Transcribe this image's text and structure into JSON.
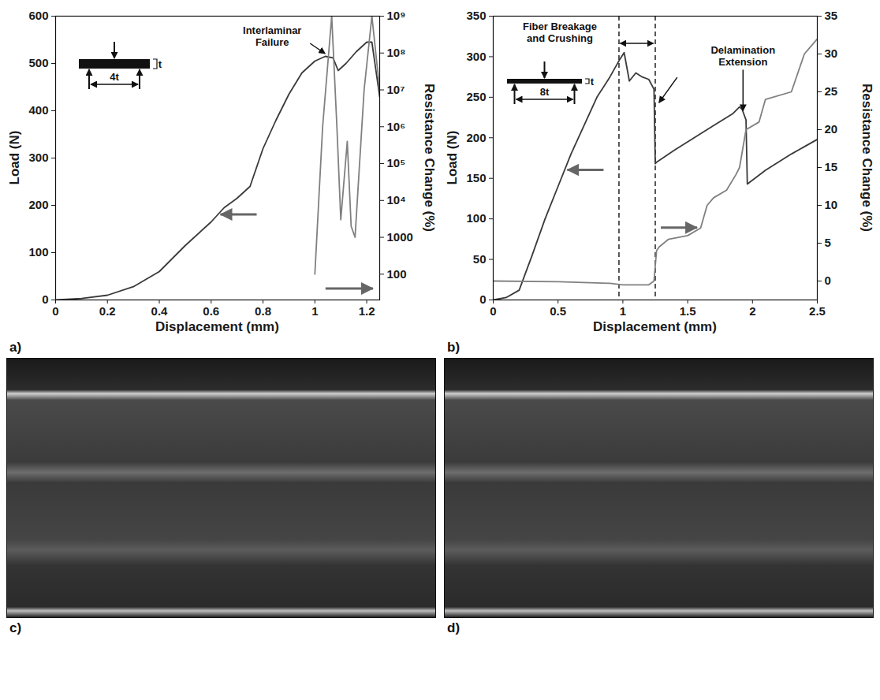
{
  "chart_data": [
    {
      "type": "line",
      "panel": "a)",
      "xlabel": "Displacement (mm)",
      "ylabel": "Load (N)",
      "y2label": "Resistance Change (%)",
      "xlim": [
        0,
        1.25
      ],
      "xticks": [
        0,
        0.2,
        0.4,
        0.6,
        0.8,
        1,
        1.2
      ],
      "ylim": [
        0,
        600
      ],
      "yticks": [
        0,
        100,
        200,
        300,
        400,
        500,
        600
      ],
      "y2lim": [
        20,
        1000000000
      ],
      "y2ticks": [
        100,
        1000,
        {
          "value": 10000,
          "label": "10⁴"
        },
        {
          "value": 100000,
          "label": "10⁵"
        },
        {
          "value": 1000000,
          "label": "10⁶"
        },
        {
          "value": 10000000,
          "label": "10⁷"
        },
        {
          "value": 100000000,
          "label": "10⁸"
        },
        {
          "value": 1000000000,
          "label": "10⁹"
        }
      ],
      "series": [
        {
          "color": "#3a3a3a",
          "x": [
            0,
            0.1,
            0.2,
            0.3,
            0.4,
            0.5,
            0.6,
            0.65,
            0.7,
            0.75,
            0.8,
            0.85,
            0.9,
            0.95,
            1.0,
            1.04,
            1.07,
            1.09,
            1.12,
            1.16,
            1.2,
            1.22,
            1.25
          ],
          "values": [
            0,
            3,
            10,
            28,
            60,
            115,
            165,
            195,
            215,
            240,
            320,
            380,
            435,
            480,
            505,
            515,
            512,
            485,
            500,
            525,
            545,
            545,
            430
          ]
        },
        {
          "axis": "y2",
          "log": true,
          "color": "#808080",
          "x": [
            1.0,
            1.03,
            1.065,
            1.085,
            1.1,
            1.125,
            1.14,
            1.155,
            1.19,
            1.22,
            1.25
          ],
          "values": [
            100,
            1000000,
            1000000000,
            1000000,
            3000,
            400000,
            2000,
            1000,
            10000000,
            1000000000,
            10000000
          ]
        }
      ],
      "annotations": [
        {
          "text": "Interlaminar Failure",
          "x": 1.05,
          "y": 515
        }
      ],
      "inset": {
        "thickness_label": "t",
        "span_label": "4t"
      }
    },
    {
      "type": "line",
      "panel": "b)",
      "xlabel": "Displacement (mm)",
      "ylabel": "Load (N)",
      "y2label": "Resistance Change (%)",
      "xlim": [
        0,
        2.5
      ],
      "xticks": [
        0,
        0.5,
        1,
        1.5,
        2,
        2.5
      ],
      "ylim": [
        0,
        350
      ],
      "yticks": [
        0,
        50,
        100,
        150,
        200,
        250,
        300,
        350
      ],
      "y2lim": [
        -2.5,
        35
      ],
      "y2ticks": [
        0,
        5,
        10,
        15,
        20,
        25,
        30,
        35
      ],
      "vlines": [
        0.97,
        1.25
      ],
      "series": [
        {
          "color": "#3a3a3a",
          "x": [
            0,
            0.1,
            0.2,
            0.3,
            0.4,
            0.5,
            0.6,
            0.7,
            0.8,
            0.9,
            0.97,
            1.01,
            1.05,
            1.1,
            1.15,
            1.2,
            1.24,
            1.25,
            1.26,
            1.4,
            1.55,
            1.7,
            1.85,
            1.9,
            1.92,
            1.95,
            1.96,
            2.1,
            2.3,
            2.5
          ],
          "values": [
            0,
            3,
            12,
            55,
            100,
            140,
            180,
            215,
            250,
            275,
            295,
            305,
            270,
            280,
            275,
            272,
            260,
            168,
            170,
            185,
            200,
            215,
            230,
            238,
            235,
            222,
            143,
            160,
            180,
            198
          ]
        },
        {
          "axis": "y2",
          "color": "#808080",
          "x": [
            0,
            0.5,
            0.9,
            1.0,
            1.2,
            1.24,
            1.26,
            1.28,
            1.35,
            1.5,
            1.6,
            1.65,
            1.7,
            1.8,
            1.87,
            1.9,
            1.95,
            2.05,
            2.1,
            2.3,
            2.4,
            2.45,
            2.5
          ],
          "values": [
            0,
            -0.1,
            -0.3,
            -0.5,
            -0.5,
            0,
            4,
            4.5,
            5.5,
            6,
            7,
            10,
            11,
            12,
            14,
            15,
            20,
            21,
            24,
            25,
            30,
            31,
            32
          ]
        }
      ],
      "annotations": [
        {
          "text": "Fiber Breakage and Crushing",
          "x": 1.27,
          "y": 240
        },
        {
          "text": "Delamination Extension",
          "x": 1.93,
          "y": 230
        }
      ],
      "inset": {
        "thickness_label": "t",
        "span_label": "8t"
      }
    }
  ],
  "images": [
    {
      "panel": "c)"
    },
    {
      "panel": "d)"
    }
  ]
}
